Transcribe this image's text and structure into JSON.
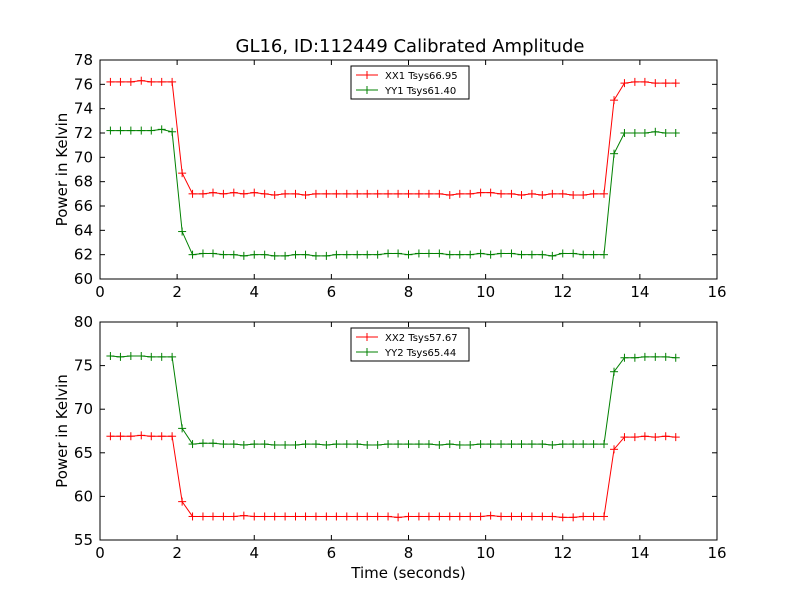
{
  "title": "GL16, ID:112449 Calibrated Amplitude",
  "colors": {
    "red": "#ff0000",
    "green": "#008000"
  },
  "chart_data": [
    {
      "type": "line",
      "title": "GL16, ID:112449 Calibrated Amplitude",
      "xlabel": "",
      "ylabel": "Power in Kelvin",
      "xlim": [
        0,
        16
      ],
      "ylim": [
        60,
        78
      ],
      "xticks": [
        "0",
        "2",
        "4",
        "6",
        "8",
        "10",
        "12",
        "14",
        "16"
      ],
      "yticks": [
        "60",
        "62",
        "64",
        "66",
        "68",
        "70",
        "72",
        "74",
        "76",
        "78"
      ],
      "grid": false,
      "legend_position": "top-center",
      "x": [
        0.27,
        0.53,
        0.8,
        1.07,
        1.33,
        1.6,
        1.87,
        2.13,
        2.4,
        2.67,
        2.93,
        3.2,
        3.47,
        3.73,
        4.0,
        4.27,
        4.53,
        4.8,
        5.07,
        5.33,
        5.6,
        5.87,
        6.13,
        6.4,
        6.67,
        6.93,
        7.2,
        7.47,
        7.73,
        8.0,
        8.27,
        8.53,
        8.8,
        9.07,
        9.33,
        9.6,
        9.87,
        10.13,
        10.4,
        10.67,
        10.93,
        11.2,
        11.47,
        11.73,
        12.0,
        12.27,
        12.53,
        12.8,
        13.07,
        13.33,
        13.6,
        13.87,
        14.13,
        14.4,
        14.67,
        14.93
      ],
      "series": [
        {
          "name": "XX1 Tsys66.95",
          "color": "#ff0000",
          "values": [
            76.2,
            76.2,
            76.2,
            76.3,
            76.2,
            76.2,
            76.2,
            68.7,
            67.0,
            67.0,
            67.1,
            67.0,
            67.1,
            67.0,
            67.1,
            67.0,
            66.9,
            67.0,
            67.0,
            66.9,
            67.0,
            67.0,
            67.0,
            67.0,
            67.0,
            67.0,
            67.0,
            67.0,
            67.0,
            67.0,
            67.0,
            67.0,
            67.0,
            66.9,
            67.0,
            67.0,
            67.1,
            67.1,
            67.0,
            67.0,
            66.9,
            67.0,
            66.9,
            67.0,
            67.0,
            66.9,
            66.9,
            67.0,
            67.0,
            74.7,
            76.1,
            76.2,
            76.2,
            76.1,
            76.1,
            76.1
          ]
        },
        {
          "name": "YY1 Tsys61.40",
          "color": "#008000",
          "values": [
            72.2,
            72.2,
            72.2,
            72.2,
            72.2,
            72.3,
            72.1,
            63.9,
            62.0,
            62.1,
            62.1,
            62.0,
            62.0,
            61.9,
            62.0,
            62.0,
            61.9,
            61.9,
            62.0,
            62.0,
            61.9,
            61.9,
            62.0,
            62.0,
            62.0,
            62.0,
            62.0,
            62.1,
            62.1,
            62.0,
            62.1,
            62.1,
            62.1,
            62.0,
            62.0,
            62.0,
            62.1,
            62.0,
            62.1,
            62.1,
            62.0,
            62.0,
            62.0,
            61.9,
            62.1,
            62.1,
            62.0,
            62.0,
            62.0,
            70.3,
            72.0,
            72.0,
            72.0,
            72.1,
            72.0,
            72.0
          ]
        }
      ]
    },
    {
      "type": "line",
      "title": "",
      "xlabel": "Time (seconds)",
      "ylabel": "Power in Kelvin",
      "xlim": [
        0,
        16
      ],
      "ylim": [
        55,
        80
      ],
      "xticks": [
        "0",
        "2",
        "4",
        "6",
        "8",
        "10",
        "12",
        "14",
        "16"
      ],
      "yticks": [
        "55",
        "60",
        "65",
        "70",
        "75",
        "80"
      ],
      "grid": false,
      "legend_position": "top-center",
      "x": [
        0.27,
        0.53,
        0.8,
        1.07,
        1.33,
        1.6,
        1.87,
        2.13,
        2.4,
        2.67,
        2.93,
        3.2,
        3.47,
        3.73,
        4.0,
        4.27,
        4.53,
        4.8,
        5.07,
        5.33,
        5.6,
        5.87,
        6.13,
        6.4,
        6.67,
        6.93,
        7.2,
        7.47,
        7.73,
        8.0,
        8.27,
        8.53,
        8.8,
        9.07,
        9.33,
        9.6,
        9.87,
        10.13,
        10.4,
        10.67,
        10.93,
        11.2,
        11.47,
        11.73,
        12.0,
        12.27,
        12.53,
        12.8,
        13.07,
        13.33,
        13.6,
        13.87,
        14.13,
        14.4,
        14.67,
        14.93
      ],
      "series": [
        {
          "name": "XX2 Tsys57.67",
          "color": "#ff0000",
          "values": [
            66.9,
            66.9,
            66.9,
            67.0,
            66.9,
            66.9,
            66.9,
            59.4,
            57.7,
            57.7,
            57.7,
            57.7,
            57.7,
            57.8,
            57.7,
            57.7,
            57.7,
            57.7,
            57.7,
            57.7,
            57.7,
            57.7,
            57.7,
            57.7,
            57.7,
            57.7,
            57.7,
            57.7,
            57.6,
            57.7,
            57.7,
            57.7,
            57.7,
            57.7,
            57.7,
            57.7,
            57.7,
            57.8,
            57.7,
            57.7,
            57.7,
            57.7,
            57.7,
            57.7,
            57.6,
            57.6,
            57.7,
            57.7,
            57.7,
            65.4,
            66.8,
            66.8,
            66.9,
            66.8,
            66.9,
            66.8
          ]
        },
        {
          "name": "YY2 Tsys65.44",
          "color": "#008000",
          "values": [
            76.1,
            76.0,
            76.1,
            76.1,
            76.0,
            76.0,
            76.0,
            67.8,
            66.0,
            66.1,
            66.1,
            66.0,
            66.0,
            65.9,
            66.0,
            66.0,
            65.9,
            65.9,
            65.9,
            66.0,
            66.0,
            65.9,
            66.0,
            66.0,
            66.0,
            65.9,
            65.9,
            66.0,
            66.0,
            66.0,
            66.0,
            66.0,
            65.9,
            66.0,
            65.9,
            65.9,
            66.0,
            66.0,
            66.0,
            66.0,
            66.0,
            66.0,
            66.0,
            65.9,
            66.0,
            66.0,
            66.0,
            66.0,
            66.0,
            74.3,
            75.9,
            75.9,
            76.0,
            76.0,
            76.0,
            75.9
          ]
        }
      ]
    }
  ]
}
